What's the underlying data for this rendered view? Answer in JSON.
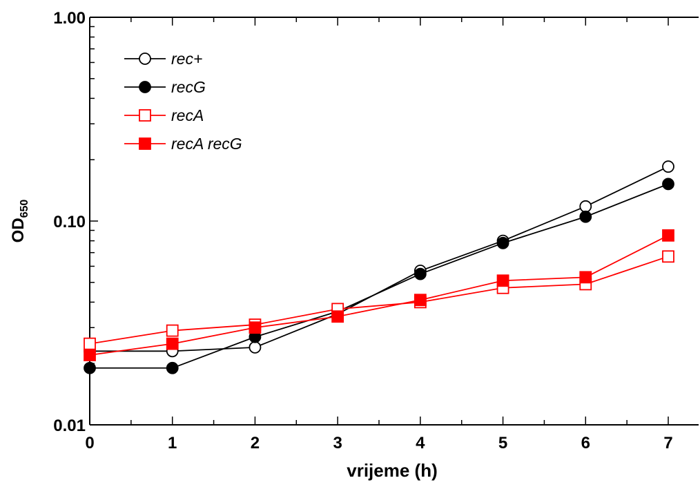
{
  "chart_data": {
    "type": "line",
    "title": "",
    "xlabel": "vrijeme (h)",
    "ylabel": {
      "main": "OD",
      "subscript": "650"
    },
    "x": [
      0,
      1,
      2,
      3,
      4,
      5,
      6,
      7
    ],
    "xlim": [
      0,
      7
    ],
    "ylim": [
      0.01,
      1.0
    ],
    "yscale": "log",
    "grid": false,
    "x_ticks": [
      "0",
      "1",
      "2",
      "3",
      "4",
      "5",
      "6",
      "7"
    ],
    "y_ticks": [
      {
        "value": 0.01,
        "label": "0.01"
      },
      {
        "value": 0.1,
        "label": "0.10"
      },
      {
        "value": 1.0,
        "label": "1.00"
      }
    ],
    "legend_position": "top-left",
    "series": [
      {
        "name": "rec+",
        "color": "#000000",
        "marker": "circle",
        "filled": false,
        "values": [
          0.023,
          0.023,
          0.024,
          0.035,
          0.057,
          0.08,
          0.118,
          0.185
        ]
      },
      {
        "name": "recG",
        "color": "#000000",
        "marker": "circle",
        "filled": true,
        "values": [
          0.019,
          0.019,
          0.027,
          0.036,
          0.055,
          0.078,
          0.105,
          0.152
        ]
      },
      {
        "name": "recA",
        "color": "#ff0000",
        "marker": "square",
        "filled": false,
        "values": [
          0.025,
          0.029,
          0.031,
          0.037,
          0.04,
          0.047,
          0.049,
          0.067
        ]
      },
      {
        "name": "recA recG",
        "color": "#ff0000",
        "marker": "square",
        "filled": true,
        "values": [
          0.022,
          0.025,
          0.03,
          0.034,
          0.041,
          0.051,
          0.053,
          0.085
        ]
      }
    ]
  }
}
